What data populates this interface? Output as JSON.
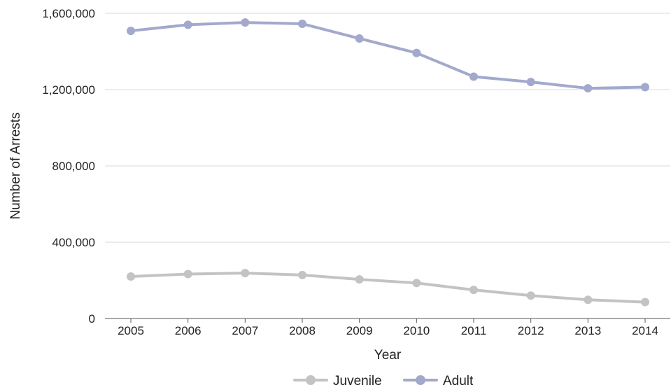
{
  "chart_data": {
    "type": "line",
    "title": "",
    "xlabel": "Year",
    "ylabel": "Number of Arrests",
    "categories": [
      "2005",
      "2006",
      "2007",
      "2008",
      "2009",
      "2010",
      "2011",
      "2012",
      "2013",
      "2014"
    ],
    "ylim": [
      0,
      1600000
    ],
    "yticks": [
      0,
      400000,
      800000,
      1200000,
      1600000
    ],
    "ytick_labels": [
      "0",
      "400,000",
      "800,000",
      "1,200,000",
      "1,600,000"
    ],
    "grid": true,
    "legend_position": "bottom",
    "series": [
      {
        "name": "Juvenile",
        "color": "#c3c3c3",
        "values": [
          220000,
          233000,
          238000,
          228000,
          205000,
          186000,
          150000,
          120000,
          98000,
          86000
        ]
      },
      {
        "name": "Adult",
        "color": "#a2a9cd",
        "values": [
          1508000,
          1540000,
          1552000,
          1545000,
          1468000,
          1392000,
          1268000,
          1240000,
          1207000,
          1213000
        ]
      }
    ]
  }
}
